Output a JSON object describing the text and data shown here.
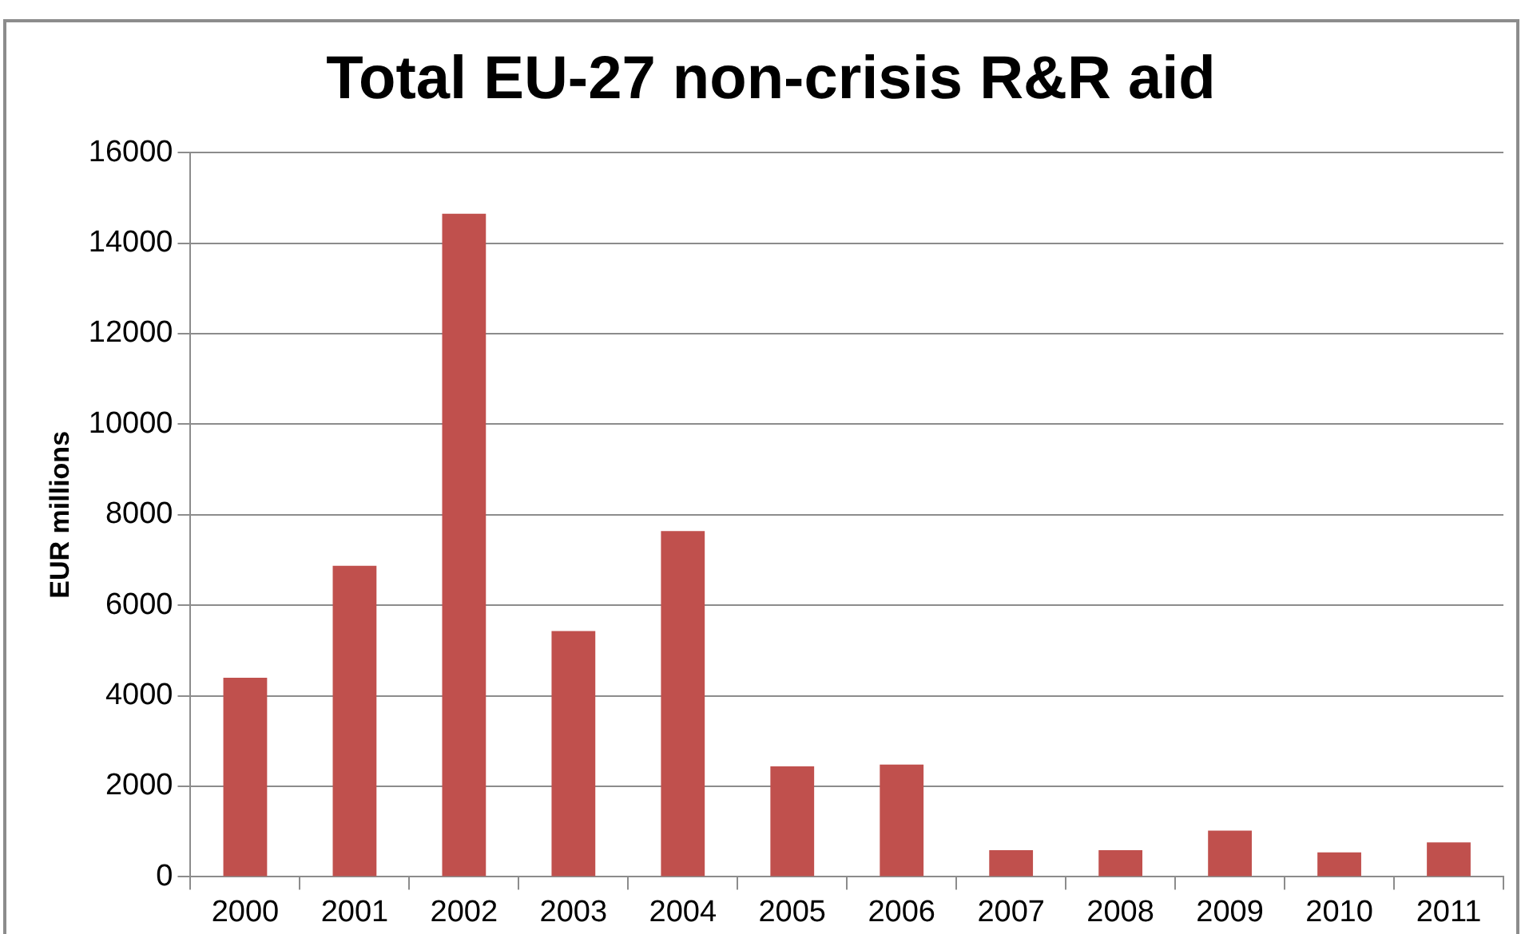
{
  "chart_data": {
    "type": "bar",
    "title": "Total EU-27 non-crisis R&R aid",
    "ylabel": "EUR millions",
    "categories": [
      "2000",
      "2001",
      "2002",
      "2003",
      "2004",
      "2005",
      "2006",
      "2007",
      "2008",
      "2009",
      "2010",
      "2011"
    ],
    "values": [
      4400,
      6870,
      14650,
      5430,
      7640,
      2440,
      2480,
      590,
      590,
      1020,
      540,
      760
    ],
    "color": "#c0504d",
    "ylim": [
      0,
      16000
    ],
    "yticks": [
      0,
      2000,
      4000,
      6000,
      8000,
      10000,
      12000,
      14000,
      16000
    ],
    "grid": "y",
    "legend": false
  }
}
